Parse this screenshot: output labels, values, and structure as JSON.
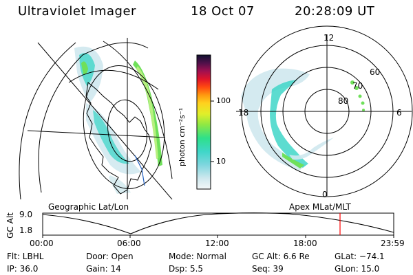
{
  "header": {
    "instrument": "Ultraviolet Imager",
    "date": "18 Oct 07",
    "time": "20:28:09 UT"
  },
  "colorbar": {
    "unit_label": "photon cm⁻²s⁻¹",
    "ticks": [
      "100",
      "10"
    ]
  },
  "polar_plot": {
    "mlt_labels": [
      "12",
      "18",
      "6",
      "0"
    ],
    "lat_labels": [
      "60",
      "70",
      "80"
    ]
  },
  "map_labels": {
    "left": "Geographic Lat/Lon",
    "right": "Apex MLat/MLT"
  },
  "altitude_plot": {
    "axis_label": "GC Alt",
    "y_ticks": [
      "9.0",
      "1.8"
    ],
    "x_ticks": [
      "00:00",
      "06:00",
      "12:00",
      "18:00",
      "23:59"
    ]
  },
  "info": {
    "flt": "Flt: LBHL",
    "ip": "IP: 36.0",
    "door": "Door: Open",
    "gain": "Gain: 14",
    "mode": "Mode:  Normal",
    "dsp": "Dsp:     5.5",
    "gc_alt": "GC Alt: 6.6 Re",
    "seq": "Seq: 39",
    "glat": "GLat:  −74.1",
    "glon": "GLon:   15.0"
  },
  "colors": {
    "auroral_green": "#6fe05a",
    "auroral_cyan": "#3fd6c8",
    "pale": "#cfe8ee",
    "marker": "#ff0000"
  }
}
